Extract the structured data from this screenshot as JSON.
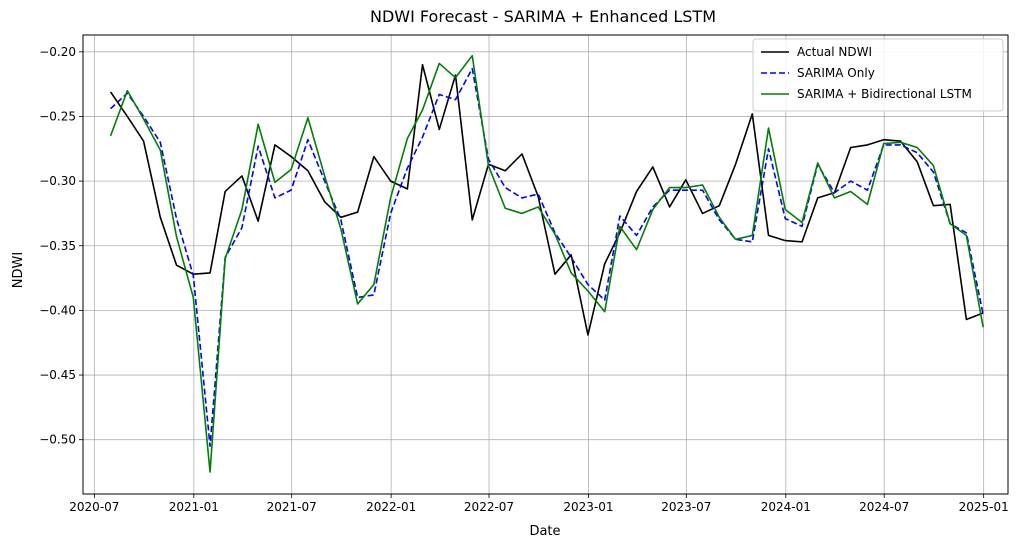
{
  "chart_data": {
    "type": "line",
    "title": "NDWI Forecast - SARIMA + Enhanced LSTM",
    "xlabel": "Date",
    "ylabel": "NDWI",
    "xlim": [
      "2020-06-10",
      "2025-02-15"
    ],
    "ylim": [
      -0.542,
      -0.187
    ],
    "grid": true,
    "legend_position": "top-right",
    "x_ticks": [
      "2020-07-01",
      "2021-01-01",
      "2021-07-01",
      "2022-01-01",
      "2022-07-01",
      "2023-01-01",
      "2023-07-01",
      "2024-01-01",
      "2024-07-01",
      "2025-01-01"
    ],
    "x_tick_labels": [
      "2020-07",
      "2021-01",
      "2021-07",
      "2022-01",
      "2022-07",
      "2023-01",
      "2023-07",
      "2024-01",
      "2024-07",
      "2025-01"
    ],
    "y_ticks": [
      -0.5,
      -0.45,
      -0.4,
      -0.35,
      -0.3,
      -0.25,
      -0.2
    ],
    "y_tick_labels": [
      "−0.50",
      "−0.45",
      "−0.40",
      "−0.35",
      "−0.30",
      "−0.25",
      "−0.20"
    ],
    "x": [
      "2020-07-31",
      "2020-08-31",
      "2020-09-30",
      "2020-10-31",
      "2020-11-30",
      "2020-12-31",
      "2021-01-31",
      "2021-02-28",
      "2021-03-31",
      "2021-04-30",
      "2021-05-31",
      "2021-06-30",
      "2021-07-31",
      "2021-08-31",
      "2021-09-30",
      "2021-10-31",
      "2021-11-30",
      "2021-12-31",
      "2022-01-31",
      "2022-02-28",
      "2022-03-31",
      "2022-04-30",
      "2022-05-31",
      "2022-06-30",
      "2022-07-31",
      "2022-08-31",
      "2022-09-30",
      "2022-10-31",
      "2022-11-30",
      "2022-12-31",
      "2023-01-31",
      "2023-02-28",
      "2023-03-31",
      "2023-04-30",
      "2023-05-31",
      "2023-06-30",
      "2023-07-31",
      "2023-08-31",
      "2023-09-30",
      "2023-10-31",
      "2023-11-30",
      "2023-12-31",
      "2024-01-31",
      "2024-02-29",
      "2024-03-31",
      "2024-04-30",
      "2024-05-31",
      "2024-06-30",
      "2024-07-31",
      "2024-08-31",
      "2024-09-30",
      "2024-10-31",
      "2024-11-30",
      "2024-12-31"
    ],
    "series": [
      {
        "name": "Actual NDWI",
        "color": "#000000",
        "dash": "solid",
        "values": [
          -0.231,
          -0.25,
          -0.269,
          -0.328,
          -0.365,
          -0.372,
          -0.371,
          -0.308,
          -0.296,
          -0.331,
          -0.272,
          -0.281,
          -0.292,
          -0.316,
          -0.328,
          -0.324,
          -0.281,
          -0.3,
          -0.306,
          -0.21,
          -0.26,
          -0.218,
          -0.33,
          -0.287,
          -0.292,
          -0.279,
          -0.312,
          -0.372,
          -0.357,
          -0.419,
          -0.364,
          -0.34,
          -0.308,
          -0.289,
          -0.32,
          -0.299,
          -0.325,
          -0.319,
          -0.287,
          -0.248,
          -0.342,
          -0.346,
          -0.347,
          -0.313,
          -0.309,
          -0.274,
          -0.272,
          -0.268,
          -0.269,
          -0.285,
          -0.319,
          -0.318,
          -0.407,
          -0.402
        ]
      },
      {
        "name": "SARIMA Only",
        "color": "#0000ff",
        "dash": "dashed",
        "values": [
          -0.244,
          -0.232,
          -0.25,
          -0.27,
          -0.329,
          -0.373,
          -0.505,
          -0.359,
          -0.336,
          -0.273,
          -0.313,
          -0.307,
          -0.268,
          -0.3,
          -0.33,
          -0.39,
          -0.388,
          -0.325,
          -0.29,
          -0.266,
          -0.233,
          -0.237,
          -0.213,
          -0.283,
          -0.305,
          -0.313,
          -0.31,
          -0.34,
          -0.359,
          -0.38,
          -0.392,
          -0.327,
          -0.342,
          -0.32,
          -0.307,
          -0.307,
          -0.307,
          -0.33,
          -0.345,
          -0.347,
          -0.275,
          -0.329,
          -0.335,
          -0.287,
          -0.309,
          -0.3,
          -0.307,
          -0.272,
          -0.272,
          -0.278,
          -0.293,
          -0.333,
          -0.34,
          -0.403
        ]
      },
      {
        "name": "SARIMA + Bidirectional LSTM",
        "color": "#008000",
        "dash": "solid",
        "values": [
          -0.265,
          -0.23,
          -0.252,
          -0.276,
          -0.343,
          -0.39,
          -0.525,
          -0.36,
          -0.322,
          -0.256,
          -0.301,
          -0.291,
          -0.251,
          -0.296,
          -0.337,
          -0.395,
          -0.38,
          -0.313,
          -0.267,
          -0.245,
          -0.209,
          -0.22,
          -0.203,
          -0.288,
          -0.321,
          -0.325,
          -0.32,
          -0.341,
          -0.371,
          -0.385,
          -0.401,
          -0.335,
          -0.353,
          -0.322,
          -0.305,
          -0.305,
          -0.303,
          -0.328,
          -0.345,
          -0.342,
          -0.259,
          -0.322,
          -0.332,
          -0.286,
          -0.313,
          -0.308,
          -0.318,
          -0.271,
          -0.27,
          -0.274,
          -0.288,
          -0.333,
          -0.342,
          -0.413
        ]
      }
    ]
  }
}
